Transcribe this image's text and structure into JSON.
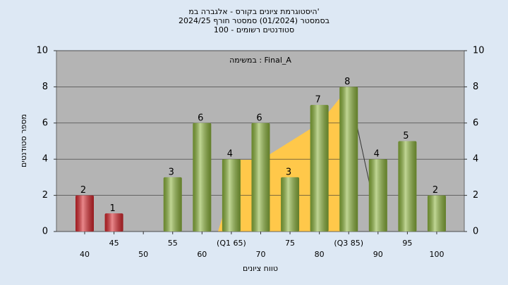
{
  "chart_data": {
    "type": "bar",
    "title": "היסטוגרמת ציונים בקורס - אלגברה במ'",
    "subtitle": "בסמסטר (01/2024) סמסטר חורף 2024/25",
    "note": "סטודנטים רשומים - 100",
    "annotation": "במשימה : Final_A",
    "x_label": "טווח ציונים",
    "y_label": "מספר סטודנטים",
    "categories": [
      "40",
      "45",
      "50",
      "55",
      "60",
      "(Q1 65)",
      "70",
      "75",
      "80",
      "(Q3 85)",
      "90",
      "95",
      "100"
    ],
    "values": [
      2,
      1,
      null,
      3,
      6,
      4,
      6,
      3,
      7,
      8,
      4,
      5,
      2
    ],
    "colors": [
      "#d8262c",
      "#d8262c",
      "#8cb43c",
      "#8cb43c",
      "#8cb43c",
      "#8cb43c",
      "#8cb43c",
      "#8cb43c",
      "#8cb43c",
      "#8cb43c",
      "#8cb43c",
      "#8cb43c",
      "#8cb43c"
    ],
    "ylim": [
      0,
      10
    ],
    "yticks": [
      0,
      2,
      4,
      6,
      8,
      10
    ],
    "y2lim": [
      0,
      10
    ],
    "y2ticks": [
      0,
      2,
      4,
      6,
      8,
      10
    ],
    "grid": true
  }
}
